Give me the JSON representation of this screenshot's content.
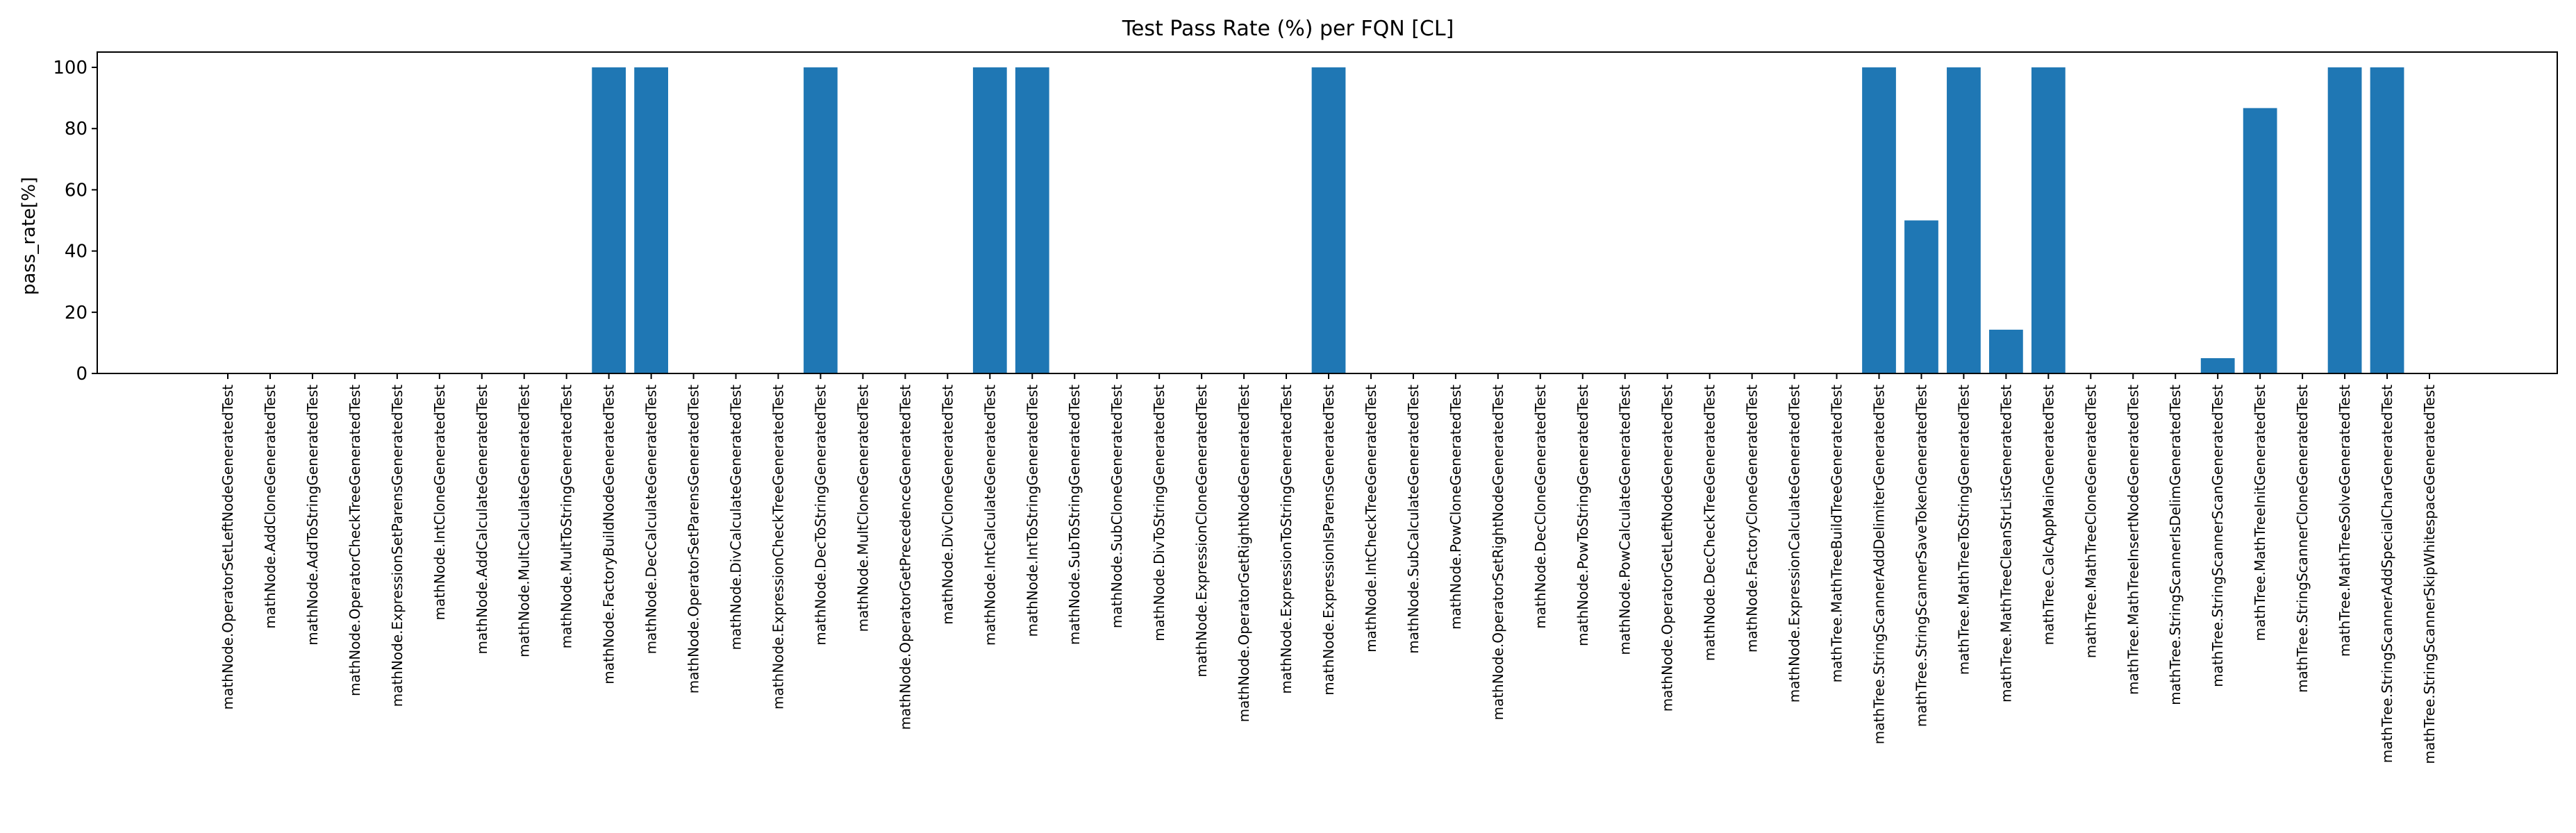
{
  "chart_data": {
    "type": "bar",
    "title": "Test Pass Rate (%) per FQN [CL]",
    "xlabel": "",
    "ylabel": "pass_rate[%]",
    "ylim": [
      0,
      105
    ],
    "yticks": [
      0,
      20,
      40,
      60,
      80,
      100
    ],
    "grid": false,
    "bar_color": "#1f77b4",
    "categories": [
      "mathNode.OperatorSetLeftNodeGeneratedTest",
      "mathNode.AddCloneGeneratedTest",
      "mathNode.AddToStringGeneratedTest",
      "mathNode.OperatorCheckTreeGeneratedTest",
      "mathNode.ExpressionSetParensGeneratedTest",
      "mathNode.IntCloneGeneratedTest",
      "mathNode.AddCalculateGeneratedTest",
      "mathNode.MultCalculateGeneratedTest",
      "mathNode.MultToStringGeneratedTest",
      "mathNode.FactoryBuildNodeGeneratedTest",
      "mathNode.DecCalculateGeneratedTest",
      "mathNode.OperatorSetParensGeneratedTest",
      "mathNode.DivCalculateGeneratedTest",
      "mathNode.ExpressionCheckTreeGeneratedTest",
      "mathNode.DecToStringGeneratedTest",
      "mathNode.MultCloneGeneratedTest",
      "mathNode.OperatorGetPrecedenceGeneratedTest",
      "mathNode.DivCloneGeneratedTest",
      "mathNode.IntCalculateGeneratedTest",
      "mathNode.IntToStringGeneratedTest",
      "mathNode.SubToStringGeneratedTest",
      "mathNode.SubCloneGeneratedTest",
      "mathNode.DivToStringGeneratedTest",
      "mathNode.ExpressionCloneGeneratedTest",
      "mathNode.OperatorGetRightNodeGeneratedTest",
      "mathNode.ExpressionToStringGeneratedTest",
      "mathNode.ExpressionIsParensGeneratedTest",
      "mathNode.IntCheckTreeGeneratedTest",
      "mathNode.SubCalculateGeneratedTest",
      "mathNode.PowCloneGeneratedTest",
      "mathNode.OperatorSetRightNodeGeneratedTest",
      "mathNode.DecCloneGeneratedTest",
      "mathNode.PowToStringGeneratedTest",
      "mathNode.PowCalculateGeneratedTest",
      "mathNode.OperatorGetLeftNodeGeneratedTest",
      "mathNode.DecCheckTreeGeneratedTest",
      "mathNode.FactoryCloneGeneratedTest",
      "mathNode.ExpressionCalculateGeneratedTest",
      "mathTree.MathTreeBuildTreeGeneratedTest",
      "mathTree.StringScannerAddDelimiterGeneratedTest",
      "mathTree.StringScannerSaveTokenGeneratedTest",
      "mathTree.MathTreeToStringGeneratedTest",
      "mathTree.MathTreeCleanStrListGeneratedTest",
      "mathTree.CalcAppMainGeneratedTest",
      "mathTree.MathTreeCloneGeneratedTest",
      "mathTree.MathTreeInsertNodeGeneratedTest",
      "mathTree.StringScannerIsDelimGeneratedTest",
      "mathTree.StringScannerScanGeneratedTest",
      "mathTree.MathTreeInitGeneratedTest",
      "mathTree.StringScannerCloneGeneratedTest",
      "mathTree.MathTreeSolveGeneratedTest",
      "mathTree.StringScannerAddSpecialCharGeneratedTest",
      "mathTree.StringScannerSkipWhitespaceGeneratedTest"
    ],
    "values": [
      0,
      0,
      0,
      0,
      0,
      0,
      0,
      0,
      0,
      100,
      100,
      0,
      0,
      0,
      100,
      0,
      0,
      0,
      100,
      100,
      0,
      0,
      0,
      0,
      0,
      0,
      100,
      0,
      0,
      0,
      0,
      0,
      0,
      0,
      0,
      0,
      0,
      0,
      0,
      100,
      50,
      100,
      14.3,
      100,
      0,
      0,
      0,
      5,
      86.7,
      0,
      100,
      100,
      0
    ]
  }
}
